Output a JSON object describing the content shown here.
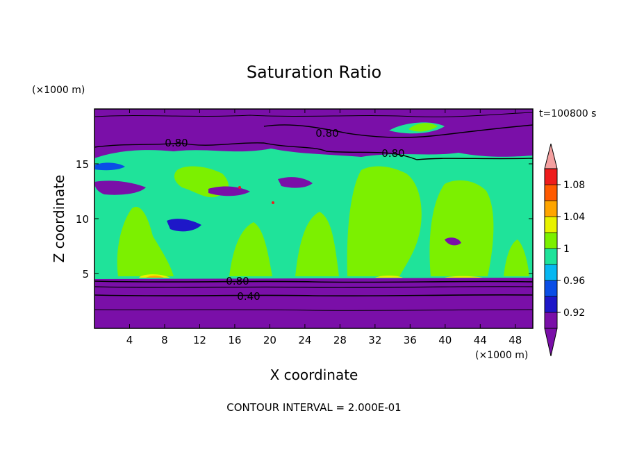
{
  "chart_data": {
    "type": "contour",
    "title": "Saturation Ratio",
    "xlabel": "X coordinate",
    "ylabel": "Z coordinate",
    "x_unit": "(×1000 m)",
    "z_unit": "(×1000 m)",
    "time_label": "t=100800 s",
    "footer": "CONTOUR INTERVAL = 2.000E-01",
    "xlim": [
      0,
      50
    ],
    "zlim": [
      0,
      20
    ],
    "xticks": [
      4,
      8,
      12,
      16,
      20,
      24,
      28,
      32,
      36,
      40,
      44,
      48
    ],
    "zticks": [
      5,
      10,
      15
    ],
    "contour_labels": [
      {
        "text": "0.80"
      },
      {
        "text": "0.80"
      },
      {
        "text": "0.80"
      },
      {
        "text": "0.80"
      },
      {
        "text": "0.40"
      }
    ],
    "colorbar": {
      "levels": [
        0.9,
        0.92,
        0.94,
        0.96,
        0.98,
        1.0,
        1.02,
        1.04,
        1.06,
        1.08,
        1.1
      ],
      "tick_labels": [
        "0.92",
        "0.96",
        "1",
        "1.04",
        "1.08"
      ],
      "colors": [
        "#7a0fa8",
        "#1e17c8",
        "#0a4ee6",
        "#07b7f2",
        "#1fe39a",
        "#7cf000",
        "#e8f200",
        "#ffa500",
        "#ff5a00",
        "#ee1c1c"
      ],
      "under_color": "#7a0fa8",
      "over_color": "#f4a0a0"
    }
  }
}
